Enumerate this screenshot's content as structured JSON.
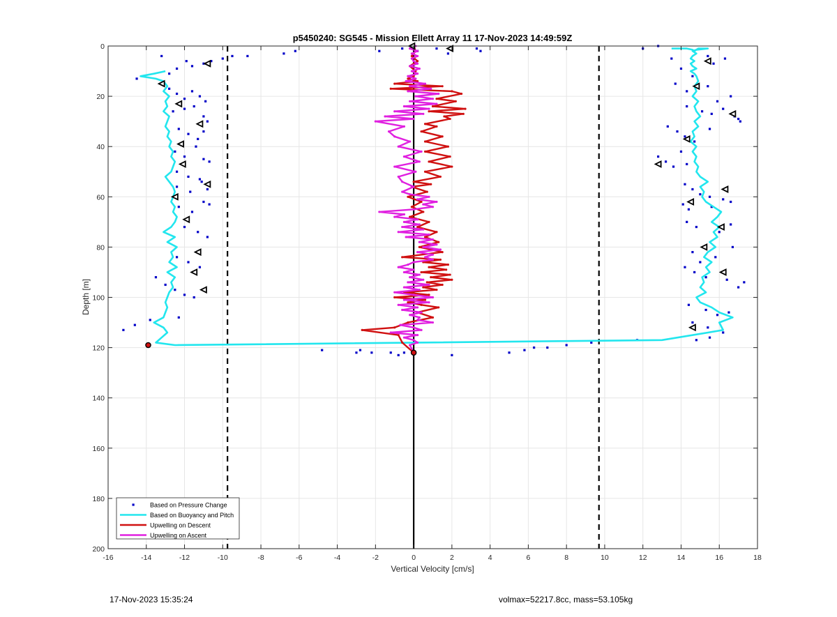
{
  "chart_data": {
    "type": "line",
    "title": "p5450240: SG545 - Mission Ellett Array 11 17-Nov-2023 14:49:59Z",
    "xlabel": "Vertical Velocity [cm/s]",
    "ylabel": "Depth [m]",
    "xlim": [
      -16,
      18
    ],
    "ylim": [
      0,
      200
    ],
    "y_reversed": true,
    "xticks": [
      -16,
      -14,
      -12,
      -10,
      -8,
      -6,
      -4,
      -2,
      0,
      2,
      4,
      6,
      8,
      10,
      12,
      14,
      16,
      18
    ],
    "yticks": [
      0,
      20,
      40,
      60,
      80,
      100,
      120,
      140,
      160,
      180,
      200
    ],
    "grid": true,
    "legend_position": "bottom-left",
    "colors": {
      "pressure": "#0000c8",
      "buoyancy": "#22e6ee",
      "descent": "#d01010",
      "ascent": "#e020e0",
      "reference": "#000000",
      "grid": "#e6e6e6"
    },
    "reference_lines": {
      "solid_x": 0,
      "dashed_x": [
        -9.75,
        9.7
      ]
    },
    "series": [
      {
        "name": "Based on Pressure Change",
        "style": "dots",
        "x": [
          -14.5,
          -13.2,
          -12.8,
          -12.4,
          -11.9,
          -11.6,
          -11.0,
          -10.6,
          -10.0,
          -9.5,
          -8.7,
          -6.8,
          -6.2,
          -12.8,
          -12.4,
          -12.0,
          -11.6,
          -11.2,
          -10.9,
          -12.6,
          -12.0,
          -11.5,
          -11.0,
          -10.8,
          -12.3,
          -11.8,
          -11.3,
          -11.0,
          -12.5,
          -12.0,
          -11.4,
          -11.0,
          -10.7,
          -12.4,
          -11.8,
          -11.2,
          -12.4,
          -11.7,
          -11.1,
          -10.8,
          -12.3,
          -11.6,
          -11.0,
          -10.7,
          -12.0,
          -11.3,
          -10.8,
          -12.4,
          -11.8,
          -11.2,
          -13.5,
          -13.0,
          -12.5,
          -12.0,
          -11.5,
          -15.2,
          -14.6,
          -13.8,
          -12.3,
          -4.8,
          -3.0,
          -2.8,
          -2.2,
          -1.2,
          -0.8,
          -0.5,
          2.0,
          5.0,
          5.8,
          6.3,
          7.0,
          8.0,
          9.3,
          11.7,
          -1.8,
          -0.6,
          0.2,
          1.2,
          1.8,
          3.3,
          3.5,
          12.0,
          12.8,
          13.5,
          14.0,
          14.6,
          15.4,
          15.7,
          16.3,
          13.7,
          14.3,
          15.4,
          15.9,
          16.6,
          14.3,
          15.1,
          15.6,
          16.2,
          16.8,
          17.0,
          17.1,
          13.3,
          13.8,
          14.2,
          14.7,
          15.5,
          12.8,
          13.2,
          13.6,
          14.0,
          14.3,
          14.2,
          14.6,
          15.0,
          15.5,
          14.1,
          14.4,
          15.6,
          16.2,
          16.6,
          14.3,
          14.8,
          16.0,
          16.6,
          14.6,
          15.0,
          15.8,
          16.7,
          14.2,
          14.7,
          15.3,
          16.4,
          17.0,
          17.3,
          14.4,
          15.3,
          15.9,
          16.5,
          14.6,
          15.4,
          16.2,
          15.5,
          14.8
        ],
        "y": [
          13,
          4,
          11,
          9,
          6,
          8,
          7,
          6,
          5,
          4,
          4,
          3,
          2,
          17,
          19,
          21,
          18,
          20,
          22,
          26,
          25,
          24,
          28,
          30,
          33,
          35,
          37,
          34,
          42,
          44,
          40,
          45,
          46,
          50,
          52,
          53,
          56,
          58,
          54,
          57,
          64,
          66,
          62,
          63,
          72,
          74,
          76,
          84,
          86,
          88,
          92,
          95,
          97,
          99,
          100,
          113,
          111,
          109,
          108,
          121,
          122,
          121,
          122,
          122,
          123,
          122,
          123,
          122,
          121,
          120,
          120,
          119,
          118,
          117,
          2,
          1,
          2,
          1,
          3,
          1,
          2,
          1,
          0,
          5,
          9,
          12,
          4,
          7,
          5,
          15,
          18,
          16,
          22,
          20,
          24,
          26,
          27,
          25,
          28,
          29,
          30,
          32,
          34,
          36,
          38,
          33,
          44,
          46,
          48,
          42,
          47,
          55,
          57,
          59,
          60,
          63,
          65,
          64,
          61,
          62,
          70,
          72,
          74,
          71,
          82,
          86,
          84,
          80,
          88,
          90,
          92,
          93,
          96,
          94,
          103,
          105,
          107,
          106,
          110,
          112,
          114,
          116,
          117
        ]
      },
      {
        "name": "Based on Buoyancy and Pitch",
        "style": "line",
        "x": [
          -13.0,
          -13.6,
          -14.3,
          -13.5,
          -13.1,
          -12.9,
          -13.1,
          -12.8,
          -13.0,
          -12.9,
          -13.1,
          -12.8,
          -12.9,
          -13.0,
          -12.8,
          -12.9,
          -12.7,
          -12.8,
          -12.6,
          -12.7,
          -12.5,
          -12.6,
          -12.7,
          -13.0,
          -12.8,
          -12.6,
          -12.5,
          -12.6,
          -12.7,
          -12.5,
          -12.6,
          -12.4,
          -12.5,
          -12.7,
          -13.1,
          -12.5,
          -12.9,
          -12.4,
          -12.7,
          -12.6,
          -12.8,
          -12.4,
          -12.9,
          -12.5,
          -12.7,
          -12.6,
          -12.8,
          -12.9,
          -13.0,
          -12.9,
          -13.0,
          -13.1,
          -13.6,
          -13.1,
          -12.9,
          -13.2,
          -13.5,
          -12.5,
          13.0,
          16.2,
          16.0,
          16.7,
          16.0,
          15.6,
          15.0,
          14.8,
          15.3,
          15.0,
          15.2,
          15.1,
          15.5,
          15.3,
          15.6,
          15.2,
          15.4,
          15.8,
          15.5,
          15.9,
          15.7,
          16.0,
          15.6,
          15.9,
          16.1,
          15.7,
          15.3,
          15.1,
          15.2,
          15.0,
          15.4,
          15.0,
          14.8,
          14.9,
          14.7,
          14.8,
          14.6,
          14.8,
          14.5,
          14.7,
          14.6,
          14.9,
          14.7,
          15.0,
          14.8,
          14.7,
          14.9,
          14.6,
          14.8,
          14.7,
          14.9,
          14.8,
          14.7,
          14.5,
          14.8,
          14.6,
          14.5,
          14.7,
          14.5,
          14.6,
          14.8,
          14.6,
          14.8,
          15.4,
          14.9,
          14.7,
          14.6,
          14.3,
          13.8,
          13.5
        ],
        "y": [
          10,
          11,
          12,
          13,
          14,
          16,
          18,
          20,
          22,
          24,
          26,
          28,
          30,
          32,
          34,
          36,
          38,
          40,
          42,
          44,
          46,
          48,
          50,
          52,
          54,
          56,
          58,
          60,
          62,
          64,
          66,
          68,
          70,
          72,
          74,
          76,
          78,
          80,
          82,
          84,
          86,
          88,
          90,
          92,
          94,
          96,
          98,
          100,
          102,
          104,
          106,
          108,
          110,
          112,
          114,
          116,
          118,
          119,
          117,
          113,
          110,
          108,
          106,
          104,
          102,
          100,
          98,
          96,
          94,
          92,
          90,
          88,
          86,
          84,
          82,
          80,
          78,
          76,
          74,
          72,
          70,
          68,
          66,
          64,
          62,
          60,
          58,
          56,
          54,
          52,
          50,
          48,
          46,
          44,
          42,
          40,
          38,
          36,
          34,
          32,
          30,
          28,
          26,
          24,
          22,
          20,
          18,
          16,
          14,
          12,
          11,
          10,
          9,
          8,
          7,
          6,
          5,
          4,
          3,
          2,
          1.5,
          1,
          1,
          2,
          1.5,
          1,
          1,
          1
        ]
      },
      {
        "name": "Upwelling on Descent",
        "style": "line",
        "x": [
          0,
          0.1,
          -0.1,
          0.2,
          -0.2,
          0.1,
          0.0,
          -0.3,
          0.2,
          -1.0,
          1.5,
          -1.2,
          2.0,
          2.5,
          1.2,
          2.2,
          1.0,
          2.7,
          0.8,
          2.6,
          1.6,
          1.9,
          0.6,
          1.2,
          0.4,
          1.5,
          0.6,
          1.8,
          0.6,
          1.9,
          0.8,
          2.0,
          0.6,
          1.4,
          0.0,
          0.9,
          -0.1,
          0.7,
          -0.3,
          0.4,
          -0.1,
          0.5,
          -0.2,
          0.8,
          0.2,
          1.2,
          0.6,
          1.3,
          0.3,
          1.5,
          -0.6,
          1.4,
          0.5,
          1.8,
          0.8,
          1.7,
          0.4,
          1.9,
          0.9,
          2.0,
          0.7,
          1.5,
          0.5,
          1.2,
          -0.5,
          0.8,
          -1.0,
          0.6,
          -0.3,
          0.4,
          1.3,
          0.2,
          1.0,
          -0.3,
          -1.0,
          -2.7,
          -0.8,
          -0.6,
          0.0
        ],
        "y": [
          0,
          2,
          4,
          6,
          8,
          10,
          12,
          13,
          14,
          15,
          16,
          17,
          18,
          19,
          21,
          22,
          24,
          25,
          26,
          27,
          28,
          29,
          31,
          32,
          34,
          36,
          38,
          40,
          42,
          44,
          46,
          48,
          50,
          52,
          54,
          55,
          56,
          58,
          60,
          62,
          64,
          66,
          68,
          70,
          72,
          74,
          76,
          78,
          80,
          82,
          84,
          85,
          86,
          87,
          88,
          89,
          90,
          91,
          92,
          93,
          94,
          95,
          96,
          97,
          98,
          99,
          100,
          101,
          102,
          103,
          104,
          106,
          108,
          110,
          112,
          113,
          115,
          118,
          122
        ]
      },
      {
        "name": "Upwelling on Ascent",
        "style": "line",
        "x": [
          0.1,
          -0.2,
          0.2,
          -0.1,
          0.2,
          -0.1,
          0.0,
          0.2,
          -0.2,
          0.3,
          -0.1,
          0.2,
          -0.3,
          0.1,
          -0.4,
          0.6,
          -0.2,
          0.9,
          -0.3,
          1.3,
          0.1,
          1.0,
          -0.2,
          1.2,
          -0.5,
          0.8,
          -1.0,
          0.5,
          -1.5,
          0.0,
          -2.0,
          -0.5,
          -1.3,
          -1.0,
          -0.2,
          -0.8,
          0.4,
          -0.5,
          0.3,
          -1.0,
          0.1,
          -0.8,
          -0.6,
          0.0,
          -0.6,
          -0.2,
          0.8,
          0.2,
          1.2,
          0.5,
          1.0,
          0.0,
          -1.8,
          -0.5,
          -1.0,
          0.2,
          -0.5,
          0.3,
          -0.6,
          0.5,
          -0.8,
          0.8,
          -0.4,
          1.0,
          0.3,
          1.2,
          0.5,
          1.4,
          0.2,
          1.0,
          0.6,
          1.0,
          0.0,
          -0.3,
          -0.8,
          0.0,
          -0.5,
          0.3,
          -0.2,
          0.5,
          -0.3,
          0.8,
          -0.5,
          0.3,
          -1.0,
          0.0,
          1.0,
          -0.5,
          0.8,
          -0.8,
          0.2,
          -0.6,
          0.4,
          -0.2,
          0.3,
          0.2,
          1.0,
          -0.7,
          0.0,
          0.4,
          -1.2,
          0.2,
          -0.5,
          0.0,
          0.2,
          -0.2,
          0.0
        ],
        "y": [
          0,
          1,
          2,
          3,
          4,
          5,
          6,
          7,
          8,
          9,
          10,
          11,
          12,
          13,
          14,
          15,
          16,
          17,
          18,
          19,
          20,
          21,
          22,
          23,
          24,
          25,
          26,
          27,
          28,
          29,
          30,
          32,
          34,
          36,
          38,
          40,
          42,
          44,
          46,
          48,
          50,
          52,
          54,
          56,
          58,
          59,
          60,
          61,
          62,
          63,
          64,
          65,
          66,
          67,
          68,
          69,
          70,
          71,
          72,
          73,
          74,
          75,
          76,
          77,
          78,
          79,
          80,
          81,
          82,
          83,
          84,
          85,
          86,
          87,
          88,
          89,
          90,
          91,
          92,
          93,
          94,
          95,
          96,
          97,
          98,
          99,
          100,
          101,
          102,
          103,
          104,
          105,
          106,
          107,
          108,
          109,
          110,
          111,
          112,
          113,
          114,
          115,
          116,
          117,
          118,
          119,
          122
        ]
      }
    ],
    "markers": {
      "triangles": {
        "x": [
          -10.8,
          -13.2,
          -12.3,
          -11.2,
          -12.2,
          -12.1,
          -10.8,
          -12.5,
          -11.9,
          -11.3,
          -11.5,
          -11.0,
          -0.1,
          1.9,
          15.4,
          14.8,
          16.7,
          14.3,
          12.8,
          16.3,
          14.5,
          16.1,
          15.2,
          16.2,
          14.6
        ],
        "y": [
          7,
          15,
          23,
          31,
          39,
          47,
          55,
          60,
          69,
          82,
          90,
          97,
          0,
          1,
          6,
          16,
          27,
          37,
          47,
          57,
          62,
          72,
          80,
          90,
          112
        ]
      },
      "red_points": {
        "x": [
          -13.9,
          0.0
        ],
        "y": [
          119,
          122
        ]
      }
    }
  },
  "footer": {
    "timestamp": "17-Nov-2023 15:35:24",
    "info": "volmax=52217.8cc, mass=53.105kg"
  }
}
